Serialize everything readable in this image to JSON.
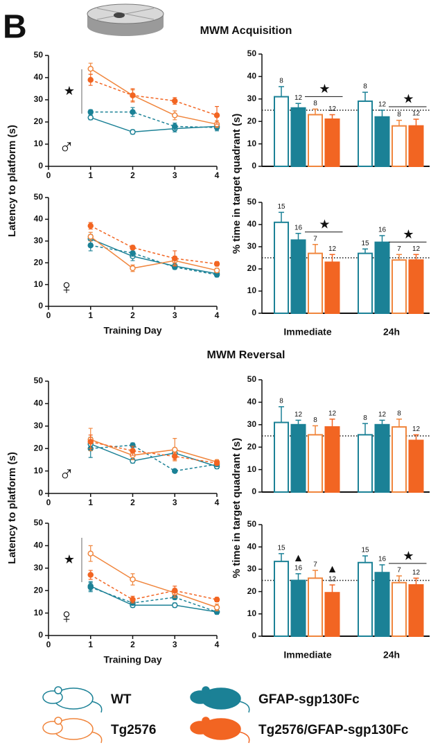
{
  "panel_label": "B",
  "section_titles": [
    "MWM Acquisition",
    "MWM Reversal"
  ],
  "legend": [
    {
      "name": "WT",
      "color": "#1b8196",
      "filled": false
    },
    {
      "name": "GFAP-sgp130Fc",
      "color": "#1b8196",
      "filled": true
    },
    {
      "name": "Tg2576",
      "color": "#f0853c",
      "filled": false
    },
    {
      "name": "Tg2576/GFAP-sgp130Fc",
      "color": "#f26522",
      "filled": true
    }
  ],
  "chart_data": [
    {
      "type": "line",
      "ylabel": "Latency to platform (s)",
      "x": [
        1,
        2,
        3,
        4
      ],
      "xlim": [
        0,
        4
      ],
      "xticks": [
        0,
        1,
        2,
        3,
        4
      ],
      "ylim": [
        0,
        50
      ],
      "yticks": [
        0,
        10,
        20,
        30,
        40,
        50
      ],
      "sex": "♂",
      "significance": "★",
      "series": [
        {
          "group": 0,
          "values": [
            22,
            15.5,
            17,
            18
          ],
          "errors": [
            1,
            1,
            1.5,
            1.5
          ]
        },
        {
          "group": 1,
          "values": [
            24.5,
            24.5,
            18,
            17.5
          ],
          "errors": [
            1,
            2,
            1.5,
            1.5
          ]
        },
        {
          "group": 2,
          "values": [
            44,
            32,
            23,
            19
          ],
          "errors": [
            2.5,
            2.5,
            2,
            1.5
          ]
        },
        {
          "group": 3,
          "values": [
            39,
            32,
            29.5,
            23
          ],
          "errors": [
            2.5,
            3,
            1.5,
            4
          ]
        }
      ]
    },
    {
      "type": "line",
      "xlabel": "Training Day",
      "x": [
        1,
        2,
        3,
        4
      ],
      "xlim": [
        0,
        4
      ],
      "xticks": [
        0,
        1,
        2,
        3,
        4
      ],
      "ylim": [
        0,
        50
      ],
      "yticks": [
        0,
        10,
        20,
        30,
        40,
        50
      ],
      "sex": "♀",
      "series": [
        {
          "group": 0,
          "values": [
            31,
            23,
            18.5,
            15
          ],
          "errors": [
            2,
            2,
            1,
            1
          ]
        },
        {
          "group": 1,
          "values": [
            28,
            24.5,
            18,
            14.5
          ],
          "errors": [
            2.5,
            1.5,
            1,
            1
          ]
        },
        {
          "group": 2,
          "values": [
            32,
            17.5,
            21,
            16.5
          ],
          "errors": [
            2,
            1.5,
            2,
            1
          ]
        },
        {
          "group": 3,
          "values": [
            37,
            27,
            22,
            19.5
          ],
          "errors": [
            1.5,
            1,
            3.5,
            1
          ]
        }
      ]
    },
    {
      "type": "bar",
      "ylabel": "% time in target quadrant (s)",
      "categories": [
        null,
        null
      ],
      "ylim": [
        0,
        50
      ],
      "yticks": [
        0,
        10,
        20,
        30,
        40,
        50
      ],
      "reference_line": 25,
      "stars": [
        "★",
        "★"
      ],
      "series": [
        {
          "group": 0,
          "values": [
            31,
            29
          ],
          "errors": [
            4.5,
            4
          ],
          "n": [
            8,
            8
          ]
        },
        {
          "group": 1,
          "values": [
            26,
            22
          ],
          "errors": [
            2,
            3
          ],
          "n": [
            12,
            12
          ]
        },
        {
          "group": 2,
          "values": [
            23,
            18
          ],
          "errors": [
            2.5,
            2.5
          ],
          "n": [
            8,
            8
          ]
        },
        {
          "group": 3,
          "values": [
            21,
            18
          ],
          "errors": [
            2,
            3
          ],
          "n": [
            12,
            12
          ]
        }
      ]
    },
    {
      "type": "bar",
      "categories": [
        "Immediate",
        "24h"
      ],
      "ylim": [
        0,
        50
      ],
      "yticks": [
        0,
        10,
        20,
        30,
        40,
        50
      ],
      "reference_line": 25,
      "stars": [
        "★",
        "★"
      ],
      "series": [
        {
          "group": 0,
          "values": [
            41,
            27
          ],
          "errors": [
            4.5,
            2
          ],
          "n": [
            15,
            15
          ]
        },
        {
          "group": 1,
          "values": [
            33,
            32
          ],
          "errors": [
            3,
            3
          ],
          "n": [
            16,
            16
          ]
        },
        {
          "group": 2,
          "values": [
            27,
            24
          ],
          "errors": [
            4,
            2.5
          ],
          "n": [
            7,
            7
          ]
        },
        {
          "group": 3,
          "values": [
            23,
            24
          ],
          "errors": [
            3.5,
            2.5
          ],
          "n": [
            12,
            12
          ]
        }
      ]
    },
    {
      "type": "line",
      "ylabel": "Latency to platform (s)",
      "x": [
        1,
        2,
        3,
        4
      ],
      "xlim": [
        0,
        4
      ],
      "xticks": [
        0,
        1,
        2,
        3,
        4
      ],
      "ylim": [
        0,
        50
      ],
      "yticks": [
        0,
        10,
        20,
        30,
        40,
        50
      ],
      "sex": "♂",
      "series": [
        {
          "group": 0,
          "values": [
            22,
            14.5,
            18,
            12
          ],
          "errors": [
            3,
            1,
            1,
            1
          ]
        },
        {
          "group": 1,
          "values": [
            20,
            21.5,
            10,
            13
          ],
          "errors": [
            4,
            1,
            0.5,
            1
          ]
        },
        {
          "group": 2,
          "values": [
            24,
            17,
            19.5,
            14
          ],
          "errors": [
            5,
            2,
            5,
            1
          ]
        },
        {
          "group": 3,
          "values": [
            23,
            19,
            16.5,
            13.5
          ],
          "errors": [
            3,
            2,
            1.5,
            1
          ]
        }
      ]
    },
    {
      "type": "line",
      "xlabel": "Training Day",
      "x": [
        1,
        2,
        3,
        4
      ],
      "xlim": [
        0,
        4
      ],
      "xticks": [
        0,
        1,
        2,
        3,
        4
      ],
      "ylim": [
        0,
        50
      ],
      "yticks": [
        0,
        10,
        20,
        30,
        40,
        50
      ],
      "sex": "♀",
      "significance": "★",
      "series": [
        {
          "group": 0,
          "values": [
            22,
            13.5,
            13.5,
            10.5
          ],
          "errors": [
            2,
            1,
            1,
            1
          ]
        },
        {
          "group": 1,
          "values": [
            21.5,
            14.5,
            17,
            10.5
          ],
          "errors": [
            2,
            1,
            1,
            1
          ]
        },
        {
          "group": 2,
          "values": [
            36.5,
            25,
            19,
            12.5
          ],
          "errors": [
            3.5,
            2.5,
            2,
            1.5
          ]
        },
        {
          "group": 3,
          "values": [
            27,
            16,
            20,
            16
          ],
          "errors": [
            2,
            1.5,
            2,
            1
          ]
        }
      ]
    },
    {
      "type": "bar",
      "ylabel": "% time in target quadrant (s)",
      "categories": [
        null,
        null
      ],
      "ylim": [
        0,
        50
      ],
      "yticks": [
        0,
        10,
        20,
        30,
        40,
        50
      ],
      "reference_line": 25,
      "series": [
        {
          "group": 0,
          "values": [
            31,
            25.5
          ],
          "errors": [
            7,
            5
          ],
          "n": [
            8,
            8
          ]
        },
        {
          "group": 1,
          "values": [
            30,
            30
          ],
          "errors": [
            2,
            2
          ],
          "n": [
            12,
            12
          ]
        },
        {
          "group": 2,
          "values": [
            25.5,
            29
          ],
          "errors": [
            4,
            3.5
          ],
          "n": [
            8,
            8
          ]
        },
        {
          "group": 3,
          "values": [
            29,
            23
          ],
          "errors": [
            3.5,
            2.5
          ],
          "n": [
            12,
            12
          ]
        }
      ]
    },
    {
      "type": "bar",
      "categories": [
        "Immediate",
        "24h"
      ],
      "ylim": [
        0,
        50
      ],
      "yticks": [
        0,
        10,
        20,
        30,
        40,
        50
      ],
      "reference_line": 25,
      "stars": [
        null,
        "★"
      ],
      "series": [
        {
          "group": 0,
          "values": [
            33.5,
            33
          ],
          "errors": [
            3.5,
            3
          ],
          "n": [
            15,
            15
          ]
        },
        {
          "group": 1,
          "values": [
            25,
            28.5
          ],
          "errors": [
            3,
            3.5
          ],
          "n": [
            16,
            16
          ],
          "flags": [
            "▲",
            null
          ]
        },
        {
          "group": 2,
          "values": [
            26,
            24
          ],
          "errors": [
            3.5,
            3
          ],
          "n": [
            7,
            7
          ]
        },
        {
          "group": 3,
          "values": [
            19.5,
            23
          ],
          "errors": [
            3.5,
            3
          ],
          "n": [
            12,
            12
          ],
          "flags": [
            "▲",
            null
          ]
        }
      ]
    }
  ]
}
